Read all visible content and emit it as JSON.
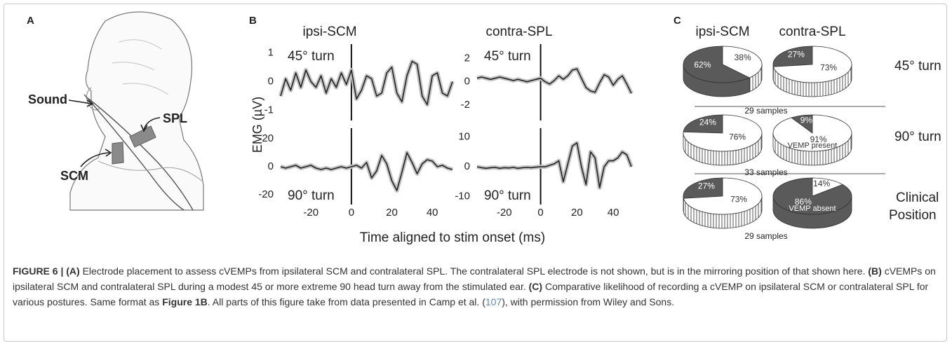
{
  "figure": {
    "panel_labels": [
      "A",
      "B",
      "C"
    ],
    "a_annotations": [
      "Sound",
      "SPL",
      "SCM"
    ],
    "b_columns": [
      "ipsi-SCM",
      "contra-SPL"
    ],
    "b_y_label": "EMG (µV)",
    "b_x_label": "Time aligned to stim onset (ms)",
    "c_columns": [
      "ipsi-SCM",
      "contra-SPL"
    ],
    "c_rows": [
      {
        "label": [
          "45° turn"
        ],
        "samples": "29 samples"
      },
      {
        "label": [
          "90° turn"
        ],
        "samples": "33 samples"
      },
      {
        "label": [
          "Clinical",
          "Position"
        ],
        "samples": "29 samples"
      }
    ]
  },
  "chart_data": [
    {
      "type": "line",
      "annotation": "45° turn",
      "x": [
        -35,
        -32.5,
        -30,
        -27.5,
        -25,
        -22.5,
        -20,
        -17.5,
        -15,
        -12.5,
        -10,
        -7.5,
        -5,
        -2.5,
        0,
        2.5,
        5,
        7.5,
        10,
        12.5,
        15,
        17.5,
        20,
        22.5,
        25,
        27.5,
        30,
        32.5,
        35,
        37.5,
        40,
        42.5,
        45,
        47.5,
        50
      ],
      "series": [
        {
          "color": "#222222",
          "band_color": "#c4c4c4",
          "values": [
            -0.5,
            0.1,
            -0.3,
            0.3,
            -0.2,
            0.4,
            0.0,
            -0.2,
            0.2,
            -0.4,
            0.1,
            -0.2,
            0.3,
            -0.1,
            0.4,
            -0.6,
            -0.3,
            0.2,
            0.1,
            -0.5,
            -0.4,
            0.3,
            0.5,
            -0.4,
            -0.7,
            0.2,
            0.7,
            0.6,
            -0.5,
            -0.8,
            0.2,
            0.3,
            -0.4,
            -0.5,
            0.0
          ]
        }
      ],
      "xlim": [
        -35,
        50
      ],
      "ylim": [
        -1.3,
        1.25
      ],
      "yticks": [
        -1,
        0,
        1
      ]
    },
    {
      "type": "line",
      "annotation": "45° turn",
      "x": [
        -35,
        -32.5,
        -30,
        -27.5,
        -25,
        -22.5,
        -20,
        -17.5,
        -15,
        -12.5,
        -10,
        -7.5,
        -5,
        -2.5,
        0,
        2.5,
        5,
        7.5,
        10,
        12.5,
        15,
        17.5,
        20,
        22.5,
        25,
        27.5,
        30,
        32.5,
        35,
        37.5,
        40,
        42.5,
        45,
        47.5,
        50
      ],
      "series": [
        {
          "color": "#222222",
          "band_color": "#c4c4c4",
          "values": [
            0.3,
            0.4,
            0.3,
            0.2,
            0.3,
            0.4,
            0.3,
            0.2,
            0.1,
            0.2,
            0.1,
            0.0,
            0.1,
            0.2,
            0.3,
            0.0,
            -0.2,
            0.1,
            0.5,
            0.2,
            0.5,
            1.0,
            1.1,
            0.3,
            -0.5,
            -0.8,
            -0.9,
            -0.1,
            0.6,
            0.4,
            -0.3,
            0.2,
            0.5,
            -0.2,
            -1.0
          ]
        }
      ],
      "xlim": [
        -35,
        50
      ],
      "ylim": [
        -3.2,
        3.1
      ],
      "yticks": [
        -2,
        0,
        2
      ]
    },
    {
      "type": "line",
      "annotation": "90° turn",
      "x": [
        -35,
        -32.5,
        -30,
        -27.5,
        -25,
        -22.5,
        -20,
        -17.5,
        -15,
        -12.5,
        -10,
        -7.5,
        -5,
        -2.5,
        0,
        2.5,
        5,
        7.5,
        10,
        12.5,
        15,
        17.5,
        20,
        22.5,
        25,
        27.5,
        30,
        32.5,
        35,
        37.5,
        40,
        42.5,
        45,
        47.5,
        50
      ],
      "series": [
        {
          "color": "#222222",
          "band_color": "#c4c4c4",
          "values": [
            0,
            -1,
            0,
            1,
            -1,
            0,
            1,
            -1,
            -2,
            -1,
            -2,
            -1,
            0,
            -1,
            0,
            1,
            -1,
            3,
            -8,
            -3,
            8,
            2,
            -10,
            -17,
            -4,
            10,
            3,
            -5,
            2,
            5,
            4,
            0,
            1,
            -1,
            -2
          ]
        }
      ],
      "xlim": [
        -35,
        50
      ],
      "xticks": [
        -20,
        0,
        20,
        40
      ],
      "ylim": [
        -26,
        26.5
      ],
      "yticks": [
        -20,
        0,
        20
      ]
    },
    {
      "type": "line",
      "annotation": "90° turn",
      "x": [
        -35,
        -32.5,
        -30,
        -27.5,
        -25,
        -22.5,
        -20,
        -17.5,
        -15,
        -12.5,
        -10,
        -7.5,
        -5,
        -2.5,
        0,
        2.5,
        5,
        7.5,
        10,
        12.5,
        15,
        17.5,
        20,
        22.5,
        25,
        27.5,
        30,
        32.5,
        35,
        37.5,
        40,
        42.5,
        45,
        47.5,
        50
      ],
      "series": [
        {
          "color": "#222222",
          "band_color": "#c4c4c4",
          "values": [
            0,
            -0.3,
            -0.5,
            -0.3,
            -0.2,
            -0.5,
            -0.3,
            -0.4,
            -0.2,
            -0.5,
            -0.3,
            -0.2,
            -0.3,
            -0.1,
            0,
            0,
            0.5,
            1,
            2,
            -5,
            1,
            7,
            8,
            0,
            -6,
            5,
            3,
            -7,
            0,
            2,
            2,
            3,
            5,
            4,
            0
          ]
        }
      ],
      "xlim": [
        -35,
        50
      ],
      "xticks": [
        -20,
        0,
        20,
        40
      ],
      "ylim": [
        -12.2,
        12.5
      ],
      "yticks": [
        -10,
        0,
        10
      ]
    },
    {
      "type": "pie",
      "values": [
        62,
        38
      ],
      "value_labels": [
        "62%",
        "38%"
      ],
      "colors": [
        "#5a5a5a",
        "#ffffff"
      ]
    },
    {
      "type": "pie",
      "values": [
        27,
        73
      ],
      "value_labels": [
        "27%",
        "73%"
      ],
      "colors": [
        "#5a5a5a",
        "#ffffff"
      ]
    },
    {
      "type": "pie",
      "values": [
        24,
        76
      ],
      "value_labels": [
        "24%",
        "76%"
      ],
      "colors": [
        "#5a5a5a",
        "#ffffff"
      ]
    },
    {
      "type": "pie",
      "values": [
        9,
        91
      ],
      "value_labels": [
        "9%",
        "91%"
      ],
      "colors": [
        "#5a5a5a",
        "#ffffff"
      ],
      "annotation": "VEMP present"
    },
    {
      "type": "pie",
      "values": [
        27,
        73
      ],
      "value_labels": [
        "27%",
        "73%"
      ],
      "colors": [
        "#5a5a5a",
        "#ffffff"
      ]
    },
    {
      "type": "pie",
      "values": [
        86,
        14
      ],
      "value_labels": [
        "86%",
        "14%"
      ],
      "colors": [
        "#5a5a5a",
        "#ffffff"
      ],
      "annotation": "VEMP absent"
    }
  ],
  "caption": [
    {
      "text": "FIGURE 6 | (A)",
      "bold": true
    },
    {
      "text": " Electrode placement to assess cVEMPs from ipsilateral SCM and contralateral SPL. The contralateral SPL electrode is not shown, but is in the mirroring position of that shown here. "
    },
    {
      "text": "(B)",
      "bold": true
    },
    {
      "text": " cVEMPs on ipsilateral SCM and contralateral SPL during a modest 45 or more extreme 90 head turn away from the stimulated ear. "
    },
    {
      "text": "(C)",
      "bold": true
    },
    {
      "text": " Comparative likelihood of recording a cVEMP on ipsilateral SCM or contralateral SPL for various postures. Same format as "
    },
    {
      "text": "Figure 1B",
      "bold": true
    },
    {
      "text": ". All parts of this figure take from data presented in Camp et al. ("
    },
    {
      "text": "107",
      "link": true
    },
    {
      "text": "), with permission from Wiley and Sons."
    }
  ]
}
